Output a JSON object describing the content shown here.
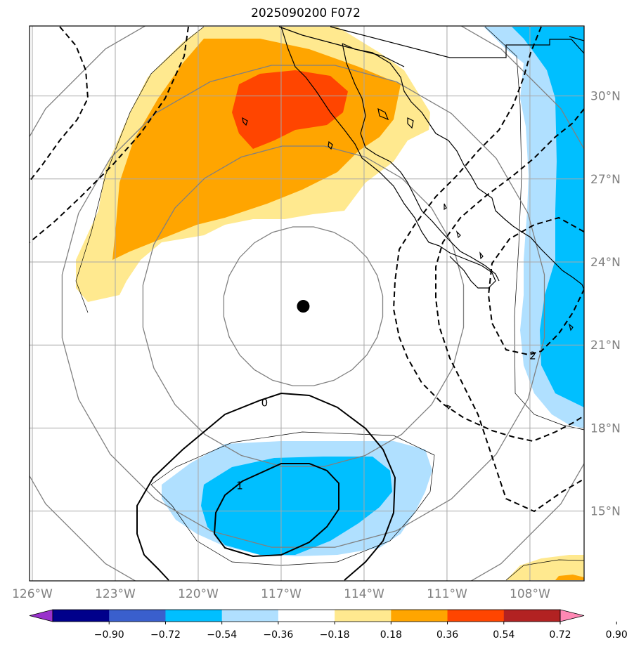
{
  "title": "2025090200 F072",
  "storm_center": {
    "lon": -116.2,
    "lat": 22.4
  },
  "extent": {
    "lon_min": -126,
    "lon_max": -106.8,
    "lat_min": 12.6,
    "lat_max": 32.3
  },
  "lon_ticks": [
    {
      "value": -126,
      "label": "126°W"
    },
    {
      "value": -123,
      "label": "123°W"
    },
    {
      "value": -120,
      "label": "120°W"
    },
    {
      "value": -117,
      "label": "117°W"
    },
    {
      "value": -114,
      "label": "114°W"
    },
    {
      "value": -111,
      "label": "111°W"
    },
    {
      "value": -108,
      "label": "108°W"
    }
  ],
  "lat_ticks": [
    {
      "value": 30,
      "label": "30°N"
    },
    {
      "value": 27,
      "label": "27°N"
    },
    {
      "value": 24,
      "label": "24°N"
    },
    {
      "value": 21,
      "label": "21°N"
    },
    {
      "value": 18,
      "label": "18°N"
    },
    {
      "value": 15,
      "label": "15°N"
    }
  ],
  "contour_labels": [
    {
      "text": "0",
      "lon": -117.6,
      "lat": 18.9
    },
    {
      "text": "1",
      "lon": -118.5,
      "lat": 15.9
    },
    {
      "text": "2",
      "lon": -107.9,
      "lat": 20.6
    }
  ],
  "colorbar": {
    "ticks": [
      "−0.90",
      "−0.72",
      "−0.54",
      "−0.36",
      "−0.18",
      "0.18",
      "0.36",
      "0.54",
      "0.72",
      "0.90"
    ],
    "colors": [
      "#9932cc",
      "#00008b",
      "#3a5fcd",
      "#00bfff",
      "#b0e0ff",
      "#ffffff",
      "#ffe98f",
      "#ffa500",
      "#ff4500",
      "#b22222",
      "#ff88b4"
    ]
  }
}
